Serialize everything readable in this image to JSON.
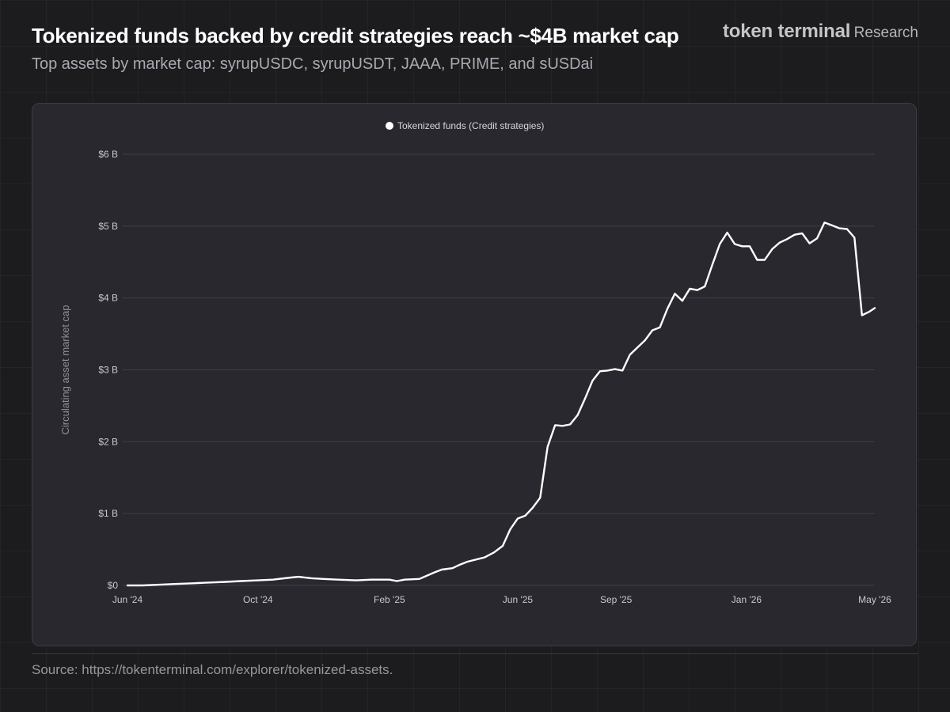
{
  "header": {
    "title": "Tokenized funds backed by credit strategies reach ~$4B market cap",
    "subtitle": "Top assets by market cap: syrupUSDC, syrupUSDT, JAAA, PRIME, and sUSDai"
  },
  "brand": {
    "name": "token terminal",
    "tag": "Research"
  },
  "footer": {
    "source": "Source: https://tokenterminal.com/explorer/tokenized-assets."
  },
  "colors": {
    "background": "#1c1c1f",
    "panel": "#28282e",
    "line": "#ffffff",
    "text_muted": "#a9a9b1"
  },
  "chart_data": {
    "type": "line",
    "title": "Tokenized funds backed by credit strategies reach ~$4B market cap",
    "ylabel": "Circulating asset market cap",
    "xlabel": "",
    "ylim": [
      0,
      6
    ],
    "y_unit": "billion USD",
    "y_ticks": [
      0,
      1,
      2,
      3,
      4,
      5,
      6
    ],
    "y_tick_labels": [
      "$0",
      "$1 B",
      "$2 B",
      "$3 B",
      "$4 B",
      "$5 B",
      "$6 B"
    ],
    "xlim": [
      "2024-06-01",
      "2026-05-01"
    ],
    "x_ticks": [
      "2024-06-01",
      "2024-10-01",
      "2025-02-01",
      "2025-06-01",
      "2025-09-01",
      "2026-01-01",
      "2026-05-01"
    ],
    "x_tick_labels": [
      "Jun '24",
      "Oct '24",
      "Feb '25",
      "Jun '25",
      "Sep '25",
      "Jan '26",
      "May '26"
    ],
    "grid": true,
    "legend_position": "top-center",
    "series": [
      {
        "name": "Tokenized funds (Credit strategies)",
        "color": "#ffffff",
        "points": [
          [
            "2024-06-01",
            0.0
          ],
          [
            "2024-06-15",
            0.0
          ],
          [
            "2024-07-01",
            0.01
          ],
          [
            "2024-07-15",
            0.02
          ],
          [
            "2024-08-01",
            0.03
          ],
          [
            "2024-08-15",
            0.04
          ],
          [
            "2024-09-01",
            0.05
          ],
          [
            "2024-09-15",
            0.06
          ],
          [
            "2024-10-01",
            0.07
          ],
          [
            "2024-10-15",
            0.08
          ],
          [
            "2024-11-01",
            0.11
          ],
          [
            "2024-11-08",
            0.12
          ],
          [
            "2024-11-20",
            0.1
          ],
          [
            "2024-12-01",
            0.09
          ],
          [
            "2024-12-15",
            0.08
          ],
          [
            "2025-01-01",
            0.07
          ],
          [
            "2025-01-15",
            0.08
          ],
          [
            "2025-02-01",
            0.08
          ],
          [
            "2025-02-08",
            0.06
          ],
          [
            "2025-02-15",
            0.08
          ],
          [
            "2025-03-01",
            0.09
          ],
          [
            "2025-03-15",
            0.18
          ],
          [
            "2025-03-22",
            0.22
          ],
          [
            "2025-04-01",
            0.24
          ],
          [
            "2025-04-08",
            0.29
          ],
          [
            "2025-04-15",
            0.33
          ],
          [
            "2025-05-01",
            0.39
          ],
          [
            "2025-05-10",
            0.46
          ],
          [
            "2025-05-18",
            0.55
          ],
          [
            "2025-05-25",
            0.78
          ],
          [
            "2025-06-01",
            0.93
          ],
          [
            "2025-06-08",
            0.97
          ],
          [
            "2025-06-15",
            1.08
          ],
          [
            "2025-06-22",
            1.22
          ],
          [
            "2025-06-29",
            1.93
          ],
          [
            "2025-07-06",
            2.23
          ],
          [
            "2025-07-13",
            2.22
          ],
          [
            "2025-07-20",
            2.24
          ],
          [
            "2025-07-27",
            2.37
          ],
          [
            "2025-08-03",
            2.6
          ],
          [
            "2025-08-10",
            2.85
          ],
          [
            "2025-08-17",
            2.98
          ],
          [
            "2025-08-24",
            2.99
          ],
          [
            "2025-08-31",
            3.01
          ],
          [
            "2025-09-07",
            2.99
          ],
          [
            "2025-09-14",
            3.21
          ],
          [
            "2025-09-21",
            3.31
          ],
          [
            "2025-09-28",
            3.41
          ],
          [
            "2025-10-05",
            3.55
          ],
          [
            "2025-10-12",
            3.59
          ],
          [
            "2025-10-19",
            3.85
          ],
          [
            "2025-10-26",
            4.06
          ],
          [
            "2025-11-02",
            3.96
          ],
          [
            "2025-11-09",
            4.13
          ],
          [
            "2025-11-16",
            4.11
          ],
          [
            "2025-11-23",
            4.16
          ],
          [
            "2025-11-30",
            4.46
          ],
          [
            "2025-12-07",
            4.75
          ],
          [
            "2025-12-14",
            4.91
          ],
          [
            "2025-12-21",
            4.75
          ],
          [
            "2025-12-28",
            4.72
          ],
          [
            "2026-01-04",
            4.72
          ],
          [
            "2026-01-11",
            4.53
          ],
          [
            "2026-01-18",
            4.53
          ],
          [
            "2026-01-25",
            4.68
          ],
          [
            "2026-02-01",
            4.77
          ],
          [
            "2026-02-08",
            4.82
          ],
          [
            "2026-02-15",
            4.88
          ],
          [
            "2026-02-22",
            4.9
          ],
          [
            "2026-03-01",
            4.76
          ],
          [
            "2026-03-08",
            4.83
          ],
          [
            "2026-03-15",
            5.05
          ],
          [
            "2026-03-22",
            5.01
          ],
          [
            "2026-03-29",
            4.97
          ],
          [
            "2026-04-05",
            4.96
          ],
          [
            "2026-04-12",
            4.84
          ],
          [
            "2026-04-19",
            3.76
          ],
          [
            "2026-04-26",
            3.81
          ],
          [
            "2026-05-01",
            3.86
          ]
        ]
      }
    ]
  }
}
